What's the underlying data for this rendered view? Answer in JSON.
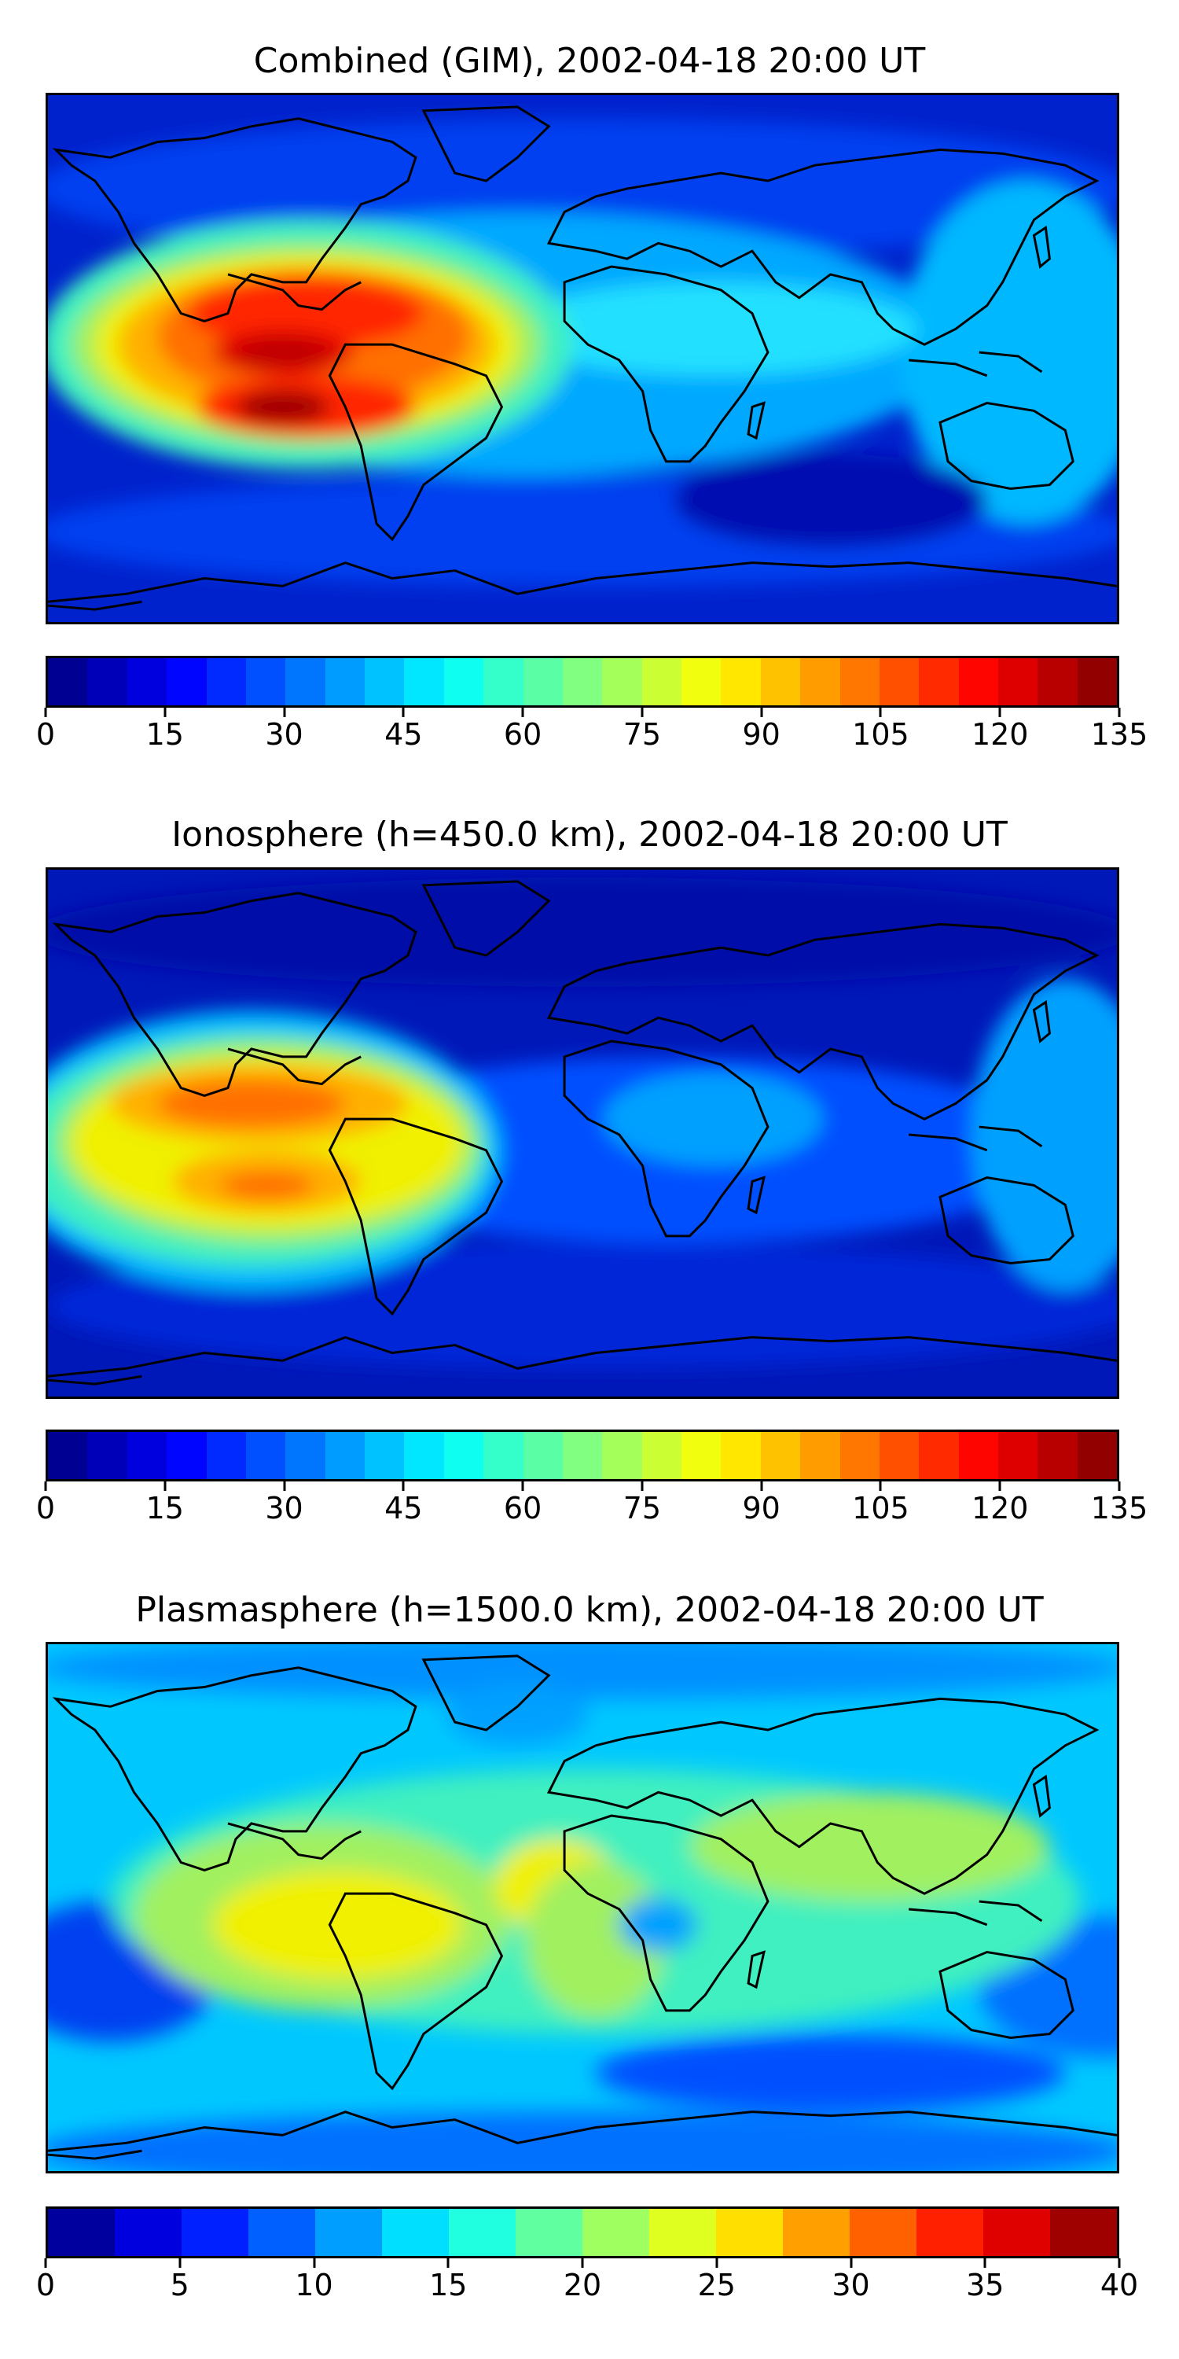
{
  "panels": [
    {
      "title": "Combined (GIM), 2002-04-18 20:00 UT",
      "map_kind": "combined",
      "colorbar": {
        "min": 0,
        "max": 135,
        "levels": 27,
        "ticks": [
          "0",
          "15",
          "30",
          "45",
          "60",
          "75",
          "90",
          "105",
          "120",
          "135"
        ]
      }
    },
    {
      "title": "Ionosphere  (h=450.0 km), 2002-04-18 20:00 UT",
      "map_kind": "ionosphere",
      "colorbar": {
        "min": 0,
        "max": 135,
        "levels": 27,
        "ticks": [
          "0",
          "15",
          "30",
          "45",
          "60",
          "75",
          "90",
          "105",
          "120",
          "135"
        ]
      }
    },
    {
      "title": "Plasmasphere (h=1500.0 km), 2002-04-18 20:00 UT",
      "map_kind": "plasmasphere",
      "colorbar": {
        "min": 0,
        "max": 40,
        "levels": 16,
        "ticks": [
          "0",
          "5",
          "10",
          "15",
          "20",
          "25",
          "30",
          "35",
          "40"
        ]
      }
    }
  ],
  "colormap": "jet"
}
